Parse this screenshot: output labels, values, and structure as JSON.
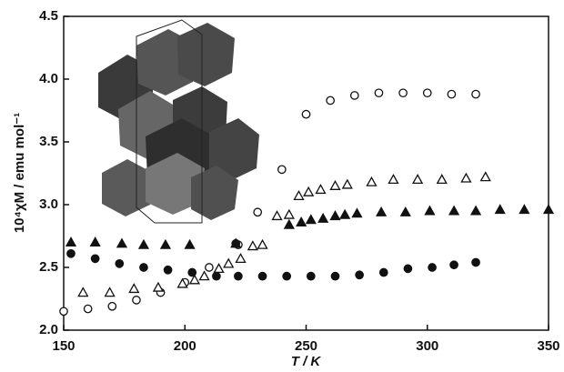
{
  "chart_data": {
    "type": "scatter",
    "x_label": "T / K",
    "y_label": "10⁴χM / emu mol⁻¹",
    "xlim": [
      150,
      350
    ],
    "xticks": [
      150,
      200,
      250,
      300,
      350
    ],
    "ylim": [
      2,
      4.5
    ],
    "yticks": [
      {
        "value": 2,
        "label": "2.0"
      },
      2.5,
      {
        "value": 3,
        "label": "3.0"
      },
      3.5,
      {
        "value": 4,
        "label": "4.0"
      },
      4.5
    ],
    "series": [
      {
        "marker": "circle-open",
        "color": "#111111",
        "x": [
          150,
          160,
          170,
          180,
          190,
          200,
          210,
          222,
          230,
          240,
          250,
          260,
          270,
          280,
          290,
          300,
          310,
          320
        ],
        "values": [
          2.15,
          2.17,
          2.19,
          2.24,
          2.3,
          2.38,
          2.5,
          2.68,
          2.94,
          3.28,
          3.72,
          3.83,
          3.87,
          3.89,
          3.89,
          3.89,
          3.88,
          3.88
        ]
      },
      {
        "marker": "triangle-open",
        "color": "#111111",
        "x": [
          158,
          169,
          179,
          189,
          199,
          204,
          208,
          214,
          218,
          223,
          228,
          232,
          238,
          243,
          247,
          251,
          256,
          262,
          267,
          277,
          286,
          296,
          306,
          316,
          324
        ],
        "values": [
          2.3,
          2.3,
          2.33,
          2.34,
          2.37,
          2.4,
          2.43,
          2.49,
          2.53,
          2.57,
          2.67,
          2.68,
          2.91,
          2.92,
          3.07,
          3.1,
          3.12,
          3.15,
          3.16,
          3.18,
          3.2,
          3.2,
          3.2,
          3.21,
          3.22
        ]
      },
      {
        "marker": "triangle-filled",
        "color": "#111111",
        "x": [
          153,
          163,
          174,
          183,
          192,
          202,
          221,
          243,
          248,
          252,
          257,
          262,
          266,
          271,
          281,
          291,
          301,
          311,
          320,
          330,
          340,
          350
        ],
        "values": [
          2.7,
          2.7,
          2.69,
          2.68,
          2.68,
          2.68,
          2.69,
          2.84,
          2.86,
          2.88,
          2.89,
          2.91,
          2.92,
          2.93,
          2.94,
          2.94,
          2.95,
          2.95,
          2.95,
          2.96,
          2.96,
          2.96
        ]
      },
      {
        "marker": "circle-filled",
        "color": "#111111",
        "x": [
          153,
          163,
          173,
          183,
          193,
          203,
          213,
          221,
          222,
          232,
          242,
          252,
          262,
          272,
          282,
          292,
          302,
          311,
          320
        ],
        "values": [
          2.61,
          2.57,
          2.53,
          2.5,
          2.48,
          2.46,
          2.43,
          2.69,
          2.43,
          2.43,
          2.43,
          2.43,
          2.43,
          2.44,
          2.46,
          2.49,
          2.5,
          2.52,
          2.54
        ]
      }
    ]
  }
}
